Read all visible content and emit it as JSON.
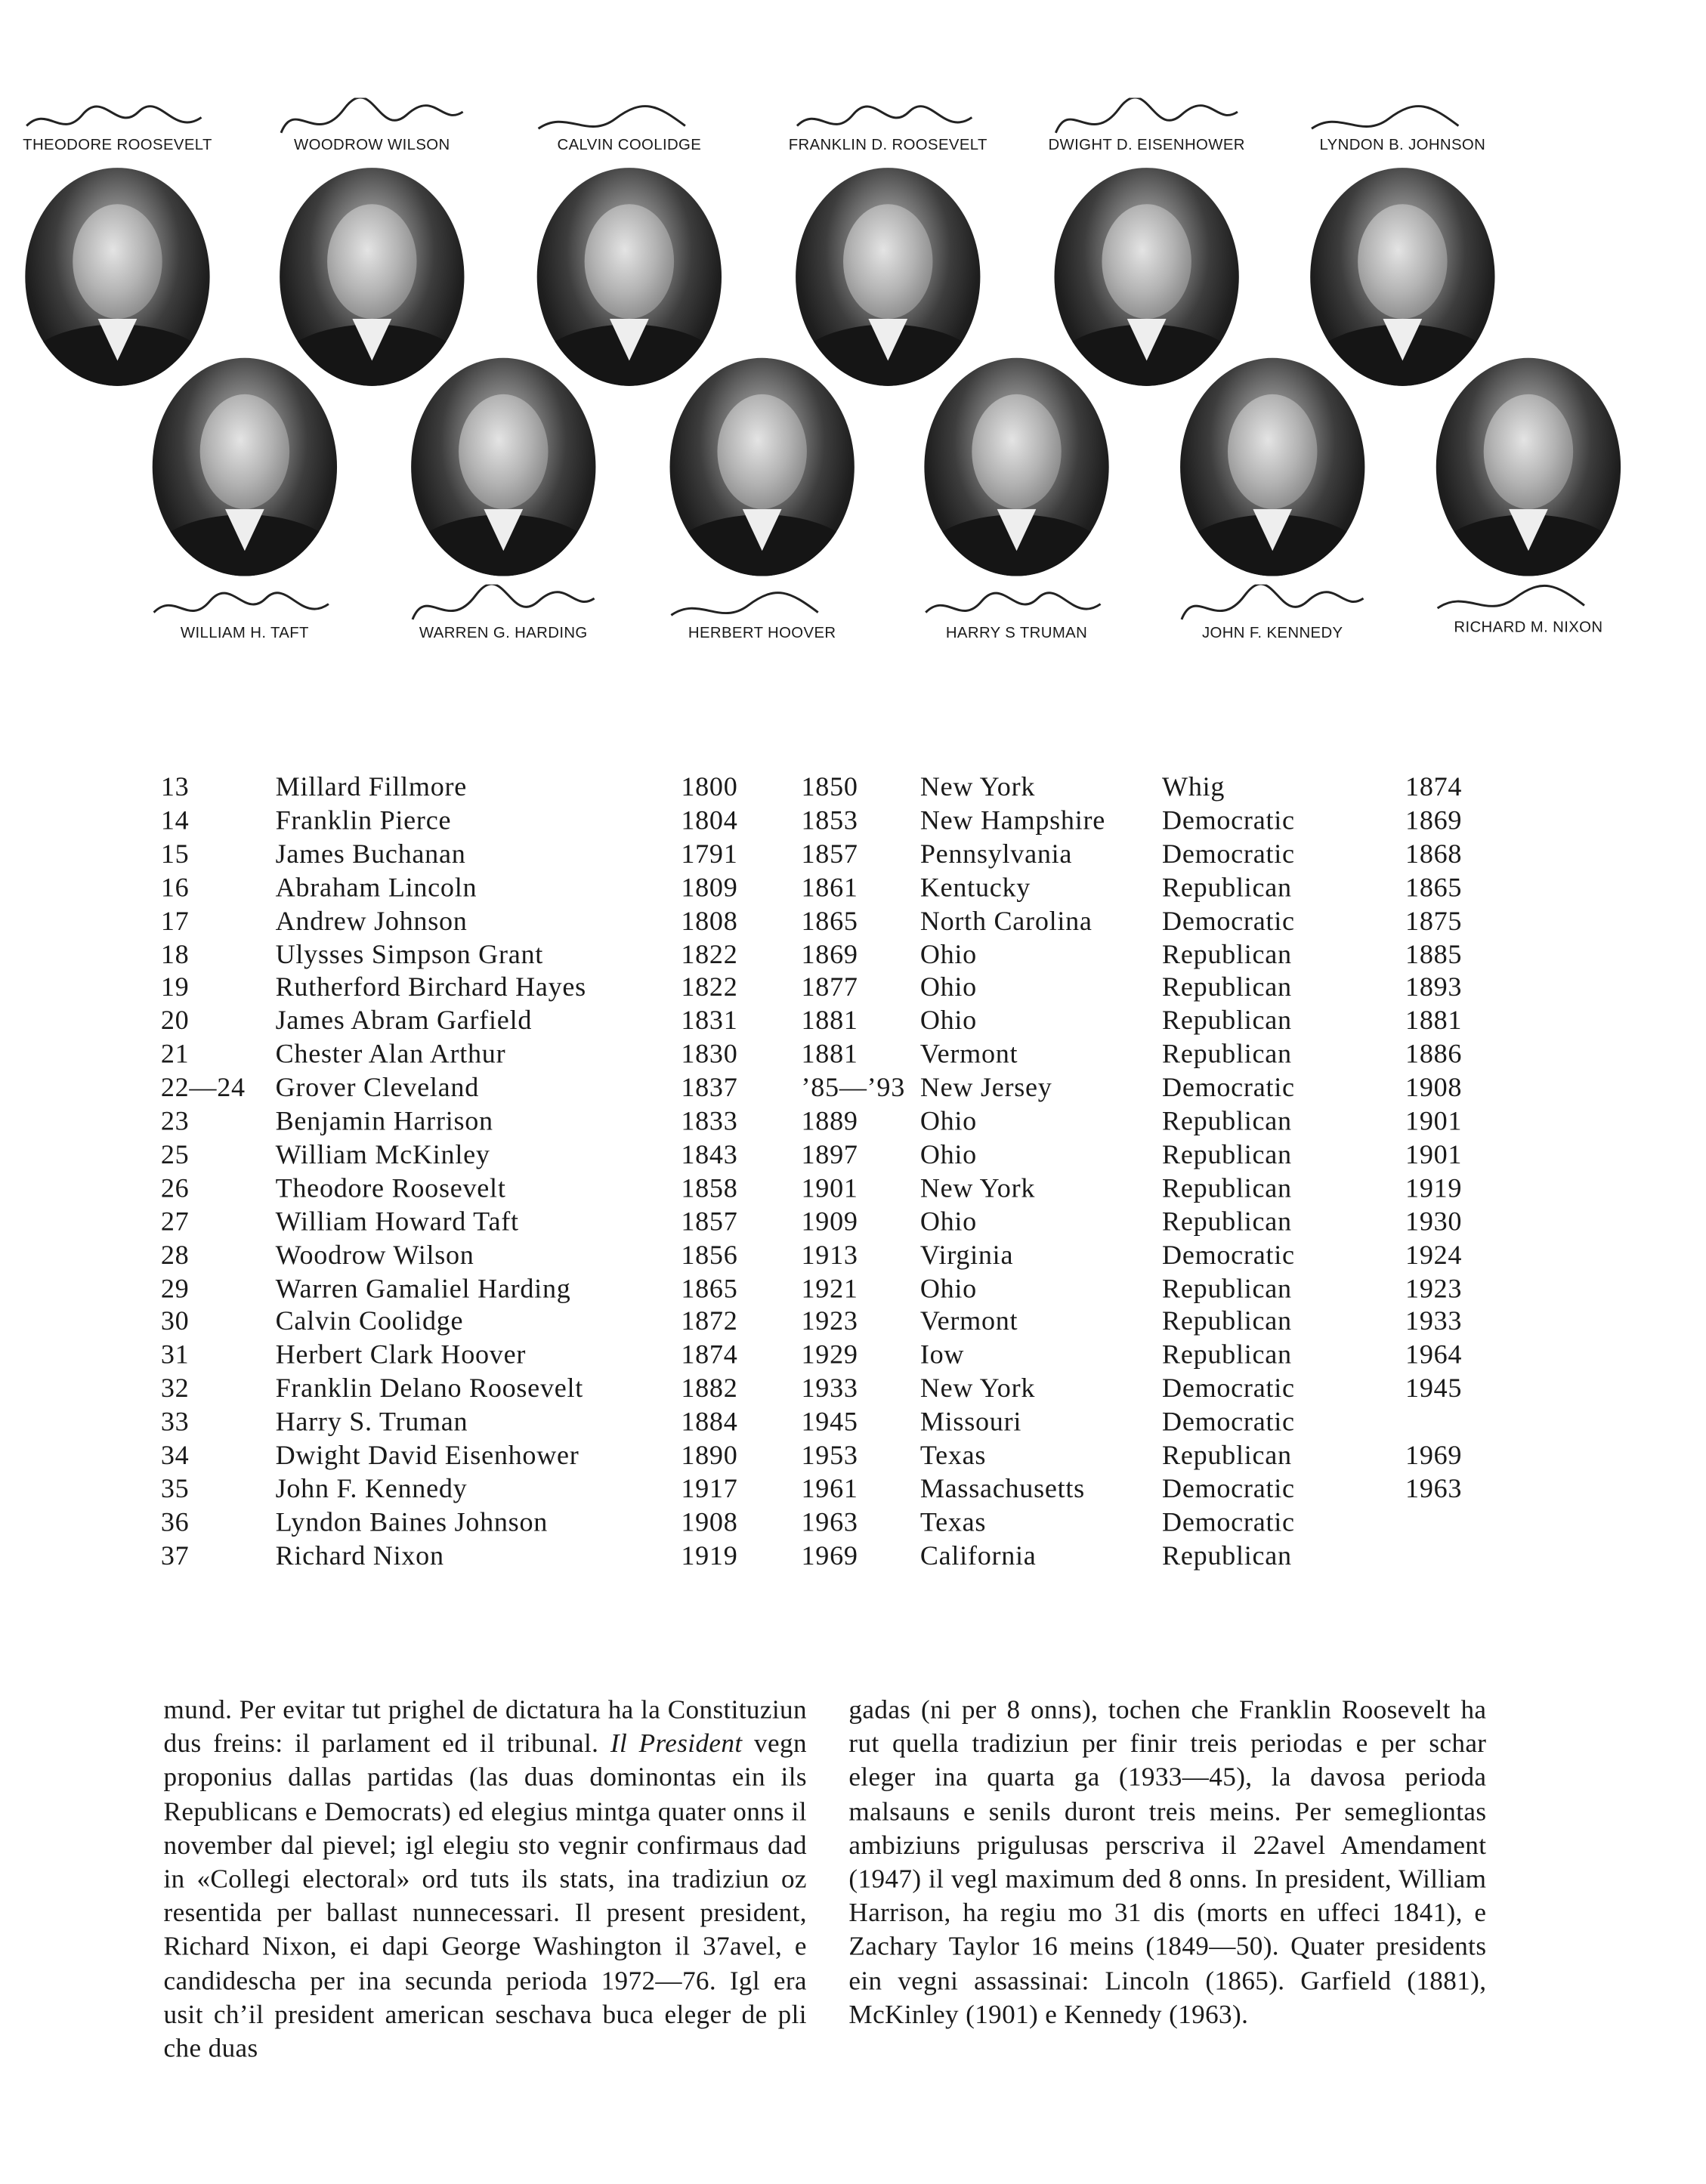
{
  "portraits_top": [
    {
      "name": "THEODORE ROOSEVELT"
    },
    {
      "name": "WOODROW WILSON"
    },
    {
      "name": "CALVIN COOLIDGE"
    },
    {
      "name": "FRANKLIN D. ROOSEVELT"
    },
    {
      "name": "DWIGHT D. EISENHOWER"
    },
    {
      "name": "LYNDON B. JOHNSON"
    }
  ],
  "portraits_bottom": [
    {
      "name": "WILLIAM H. TAFT"
    },
    {
      "name": "WARREN G. HARDING"
    },
    {
      "name": "HERBERT HOOVER"
    },
    {
      "name": "HARRY S TRUMAN"
    },
    {
      "name": "JOHN F. KENNEDY"
    },
    {
      "name": "RICHARD M. NIXON"
    }
  ],
  "table": {
    "rows": [
      [
        "13",
        "Millard Fillmore",
        "1800",
        "1850",
        "New York",
        "Whig",
        "1874"
      ],
      [
        "14",
        "Franklin Pierce",
        "1804",
        "1853",
        "New Hampshire",
        "Democratic",
        "1869"
      ],
      [
        "15",
        "James Buchanan",
        "1791",
        "1857",
        "Pennsylvania",
        "Democratic",
        "1868"
      ],
      [
        "16",
        "Abraham Lincoln",
        "1809",
        "1861",
        "Kentucky",
        "Republican",
        "1865"
      ],
      [
        "17",
        "Andrew Johnson",
        "1808",
        "1865",
        "North Carolina",
        "Democratic",
        "1875"
      ],
      [
        "18",
        "Ulysses Simpson Grant",
        "1822",
        "1869",
        "Ohio",
        "Republican",
        "1885"
      ],
      [
        "19",
        "Rutherford Birchard Hayes",
        "1822",
        "1877",
        "Ohio",
        "Republican",
        "1893"
      ],
      [
        "20",
        "James Abram Garfield",
        "1831",
        "1881",
        "Ohio",
        "Republican",
        "1881"
      ],
      [
        "21",
        "Chester Alan Arthur",
        "1830",
        "1881",
        "Vermont",
        "Republican",
        "1886"
      ],
      [
        "22—24",
        "Grover Cleveland",
        "1837",
        "’85—’93",
        "New Jersey",
        "Democratic",
        "1908"
      ],
      [
        "23",
        "Benjamin Harrison",
        "1833",
        "1889",
        "Ohio",
        "Republican",
        "1901"
      ],
      [
        "25",
        "William McKinley",
        "1843",
        "1897",
        "Ohio",
        "Republican",
        "1901"
      ],
      [
        "26",
        "Theodore Roosevelt",
        "1858",
        "1901",
        "New York",
        "Republican",
        "1919"
      ],
      [
        "27",
        "William Howard Taft",
        "1857",
        "1909",
        "Ohio",
        "Republican",
        "1930"
      ],
      [
        "28",
        "Woodrow Wilson",
        "1856",
        "1913",
        "Virginia",
        "Democratic",
        "1924"
      ],
      [
        "29",
        "Warren Gamaliel Harding",
        "1865",
        "1921",
        "Ohio",
        "Republican",
        "1923"
      ],
      [
        "30",
        "Calvin Coolidge",
        "1872",
        "1923",
        "Vermont",
        "Republican",
        "1933"
      ],
      [
        "31",
        "Herbert Clark Hoover",
        "1874",
        "1929",
        "Iow",
        "Republican",
        "1964"
      ],
      [
        "32",
        "Franklin Delano Roosevelt",
        "1882",
        "1933",
        "New York",
        "Democratic",
        "1945"
      ],
      [
        "33",
        "Harry S. Truman",
        "1884",
        "1945",
        "Missouri",
        "Democratic",
        ""
      ],
      [
        "34",
        "Dwight David Eisenhower",
        "1890",
        "1953",
        "Texas",
        "Republican",
        "1969"
      ],
      [
        "35",
        "John F. Kennedy",
        "1917",
        "1961",
        "Massachusetts",
        "Democratic",
        "1963"
      ],
      [
        "36",
        "Lyndon Baines Johnson",
        "1908",
        "1963",
        "Texas",
        "Democratic",
        ""
      ],
      [
        "37",
        "Richard Nixon",
        "1919",
        "1969",
        "California",
        "Republican",
        ""
      ]
    ]
  },
  "text": {
    "left_1": "mund. Per evitar tut prighel de dictatura ha la Constituziun dus freins: il parlament ed il tribunal. ",
    "left_italic": "Il President",
    "left_2": " vegn proponius dallas partidas (las duas dominontas ein ils Republicans e Democrats) ed elegius mintga quater onns il november dal pievel; igl elegiu sto vegnir confirmaus dad in «Collegi electoral» ord tuts ils stats, ina tradiziun oz resentida per ballast nunnecessari. Il present president, Richard Nixon, ei dapi George Washington il 37avel, e candidescha per ina secunda perioda 1972—76. Igl era usit ch’il president american seschava buca eleger de pli che duas",
    "right": "gadas (ni per 8 onns), tochen che Franklin Roosevelt ha rut quella tradiziun per finir treis periodas e per schar eleger ina quarta ga (1933—45), la davosa perioda malsauns e senils duront treis meins. Per semegliontas ambiziuns prigulusas perscriva il 22avel Amendament (1947) il vegl maximum ded 8 onns. In president, William Harrison, ha regiu mo 31 dis (morts en uffeci 1841), e Zachary Taylor 16 meins (1849—50). Quater presidents ein vegni assassinai: Lincoln (1865). Garfield (1881), McKinley (1901) e Kennedy (1963)."
  }
}
